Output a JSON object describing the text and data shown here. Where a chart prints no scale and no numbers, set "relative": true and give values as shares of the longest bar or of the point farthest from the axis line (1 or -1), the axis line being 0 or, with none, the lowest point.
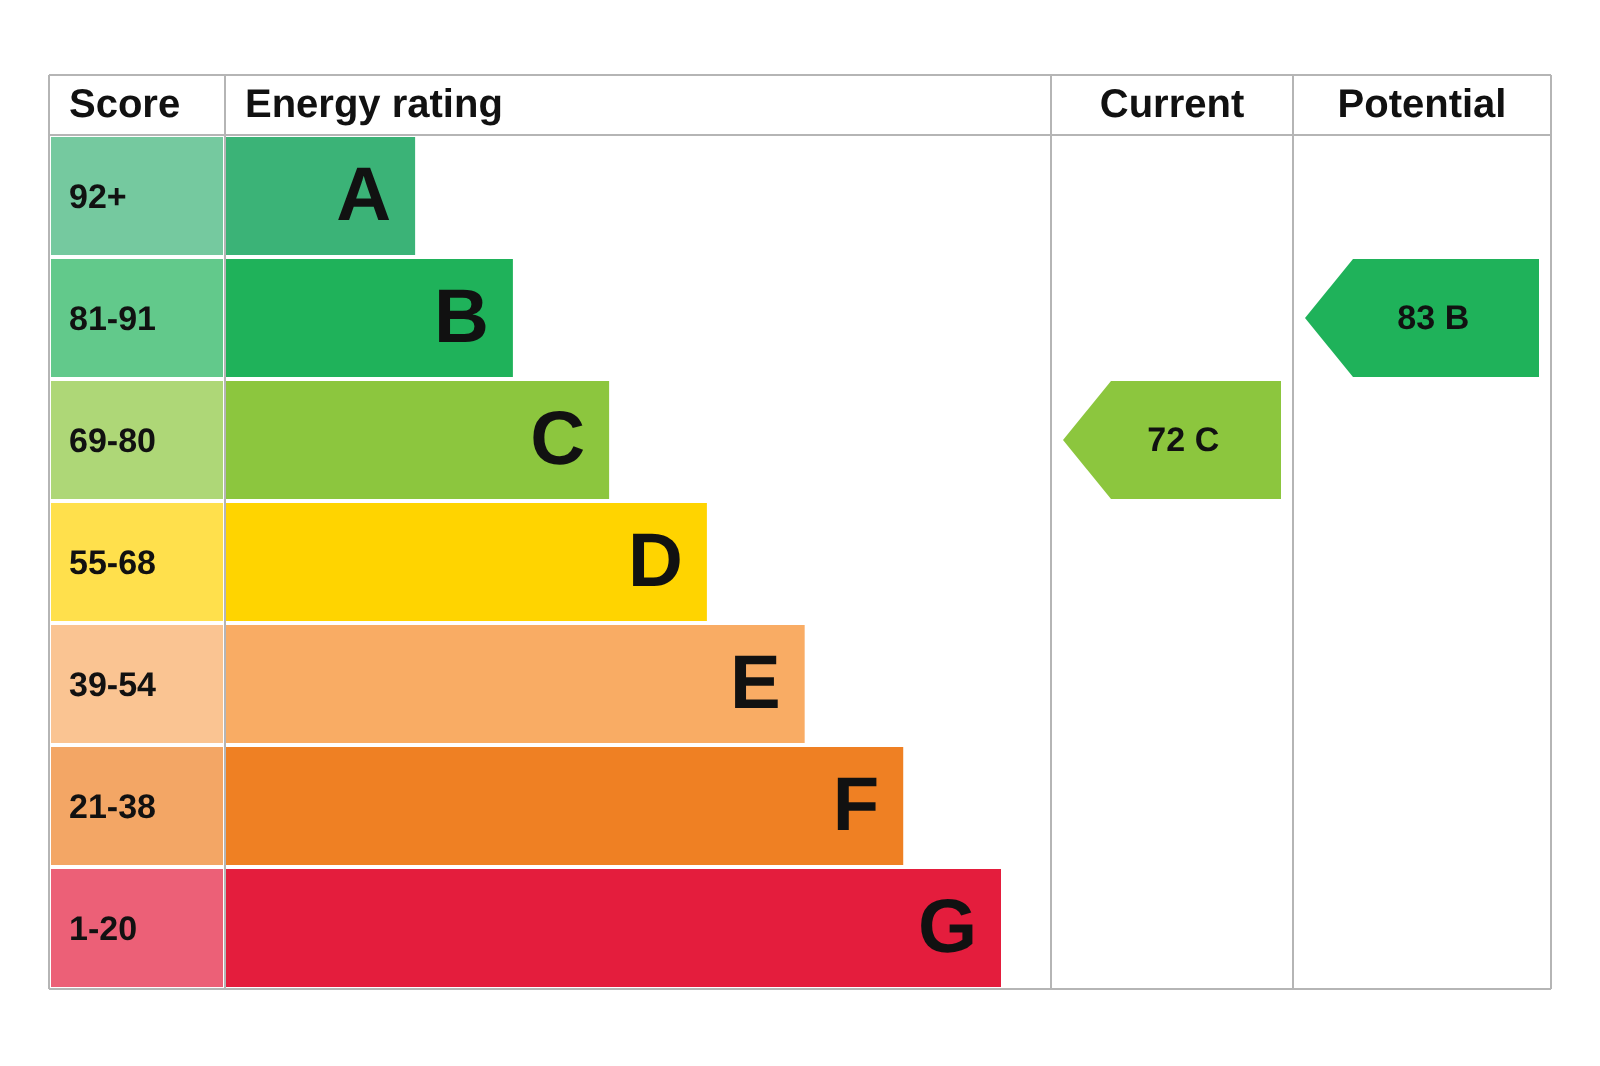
{
  "chart_data": {
    "type": "bar",
    "orientation": "horizontal",
    "relative": true,
    "categories": [
      "A",
      "B",
      "C",
      "D",
      "E",
      "F",
      "G"
    ],
    "values": [
      0.245,
      0.371,
      0.495,
      0.621,
      0.747,
      0.874,
      1.0
    ],
    "colors": [
      "#3bb377",
      "#1fb25a",
      "#8cc63e",
      "#ffd400",
      "#f9ac64",
      "#ef8023",
      "#e41d3d"
    ],
    "annotations": [
      "Score",
      "Energy rating",
      "Current",
      "Potential",
      "92+",
      "81-91",
      "69-80",
      "55-68",
      "39-54",
      "21-38",
      "1-20",
      "72  C",
      "83  B"
    ]
  }
}
